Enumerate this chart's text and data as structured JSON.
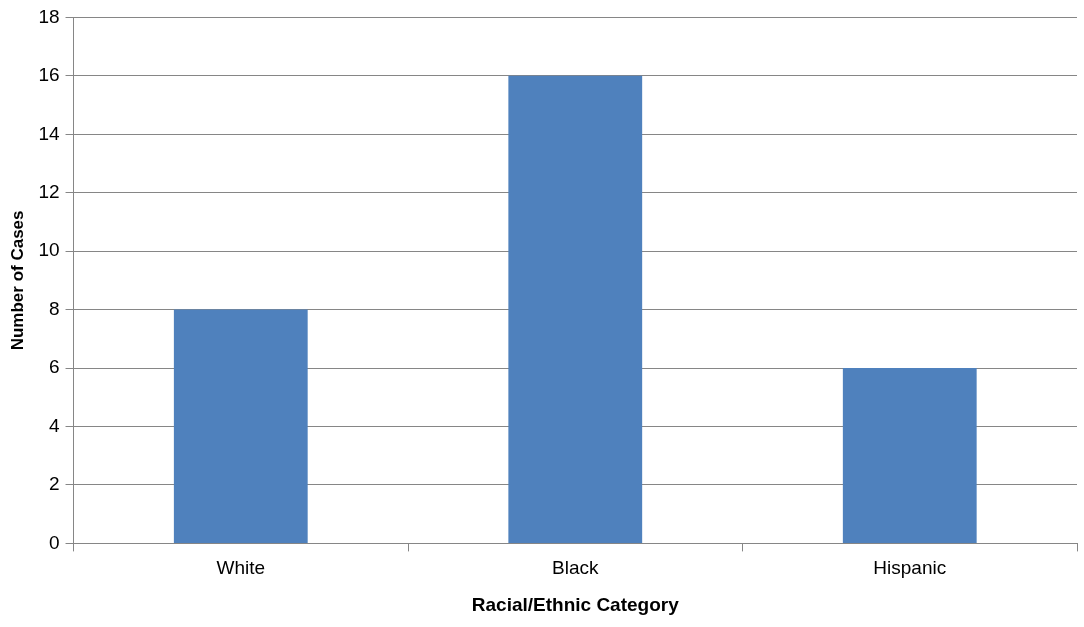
{
  "chart_data": {
    "type": "bar",
    "xlabel": "Racial/Ethnic Category",
    "ylabel": "Number of Cases",
    "categories": [
      "White",
      "Black",
      "Hispanic"
    ],
    "values": [
      8,
      16,
      6
    ],
    "color": "#4f81bd",
    "ylim": [
      0,
      18
    ],
    "yticks": [
      0,
      2,
      4,
      6,
      8,
      10,
      12,
      14,
      16,
      18
    ],
    "grid": "y"
  }
}
